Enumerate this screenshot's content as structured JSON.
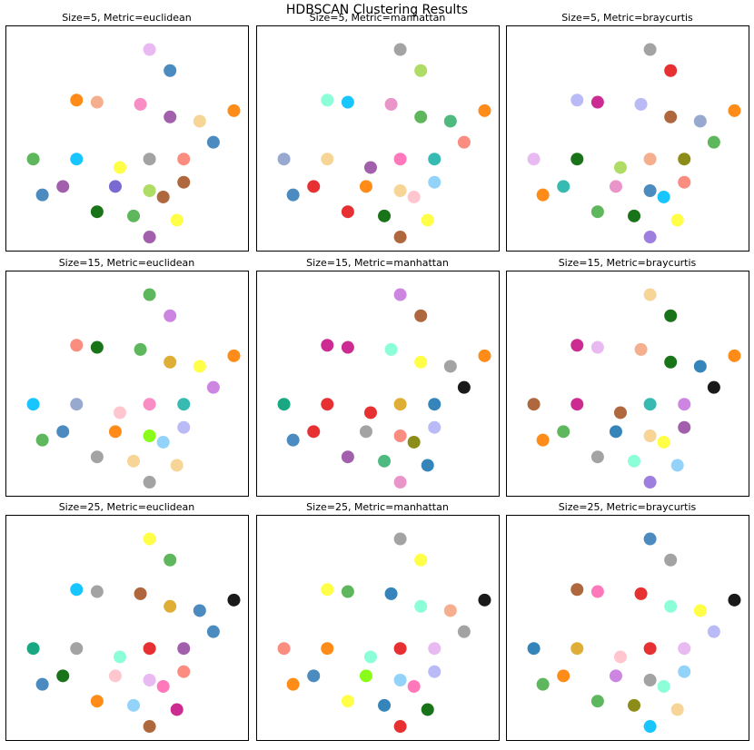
{
  "title": "HDBSCAN Clustering Results",
  "chart_data": [
    {
      "type": "scatter",
      "title": "Size=5, Metric=euclidean",
      "xlim": [
        0,
        100
      ],
      "ylim": [
        0,
        100
      ],
      "x": [
        60,
        69,
        28,
        37,
        56,
        69,
        82,
        9,
        28,
        47,
        60,
        75,
        88,
        22,
        45,
        60,
        75,
        13,
        37,
        53,
        66,
        72,
        60,
        97
      ],
      "y": [
        92,
        82,
        68,
        67,
        66,
        60,
        58,
        40,
        40,
        36,
        40,
        40,
        48,
        27,
        27,
        25,
        29,
        23,
        15,
        13,
        22,
        11,
        3,
        63
      ],
      "colors": [
        "#e6b3f0",
        "#377eb8",
        "#ff7f00",
        "#f4a582",
        "#f781bf",
        "#984ea3",
        "#f5d08b",
        "#4daf4a",
        "#00bfff",
        "#ffff33",
        "#999999",
        "#fa8072",
        "#377eb8",
        "#984ea3",
        "#6a5acd",
        "#a6d854",
        "#a65628",
        "#377eb8",
        "#006400",
        "#4daf4a",
        "#a65628",
        "#ffff33",
        "#984ea3",
        "#ff7f00"
      ]
    },
    {
      "type": "scatter",
      "title": "Size=5, Metric=manhattan",
      "xlim": [
        0,
        100
      ],
      "ylim": [
        0,
        100
      ],
      "x": [
        60,
        69,
        28,
        37,
        56,
        69,
        82,
        9,
        28,
        47,
        60,
        75,
        88,
        22,
        45,
        60,
        75,
        13,
        37,
        53,
        66,
        72,
        60,
        97
      ],
      "y": [
        92,
        82,
        68,
        67,
        66,
        60,
        58,
        40,
        40,
        36,
        40,
        40,
        48,
        27,
        27,
        25,
        29,
        23,
        15,
        13,
        22,
        11,
        3,
        63
      ],
      "colors": [
        "#999999",
        "#a6d854",
        "#7fffd4",
        "#00bfff",
        "#e78ac3",
        "#4daf4a",
        "#3cb371",
        "#8da0cb",
        "#f5d08b",
        "#984ea3",
        "#ff69b4",
        "#20b2aa",
        "#fa8072",
        "#e41a1c",
        "#ff7f00",
        "#f5d08b",
        "#87cefa",
        "#377eb8",
        "#e41a1c",
        "#006400",
        "#ffc0cb",
        "#ffff33",
        "#a65628",
        "#ff7f00"
      ]
    },
    {
      "type": "scatter",
      "title": "Size=5, Metric=braycurtis",
      "xlim": [
        0,
        100
      ],
      "ylim": [
        0,
        100
      ],
      "x": [
        60,
        69,
        28,
        37,
        56,
        69,
        82,
        9,
        28,
        47,
        60,
        75,
        88,
        22,
        45,
        60,
        75,
        13,
        37,
        53,
        66,
        72,
        60,
        97
      ],
      "y": [
        92,
        82,
        68,
        67,
        66,
        60,
        58,
        40,
        40,
        36,
        40,
        40,
        48,
        27,
        27,
        25,
        29,
        23,
        15,
        13,
        22,
        11,
        3,
        63
      ],
      "colors": [
        "#999999",
        "#e41a1c",
        "#b3b3f5",
        "#c71585",
        "#b3b3f5",
        "#a65628",
        "#8da0cb",
        "#e6b3f0",
        "#006400",
        "#a6d854",
        "#f4a582",
        "#808000",
        "#4daf4a",
        "#20b2aa",
        "#e78ac3",
        "#377eb8",
        "#fa8072",
        "#ff7f00",
        "#4daf4a",
        "#006400",
        "#00bfff",
        "#ffff33",
        "#9370db",
        "#ff7f00"
      ]
    },
    {
      "type": "scatter",
      "title": "Size=15, Metric=euclidean",
      "xlim": [
        0,
        100
      ],
      "ylim": [
        0,
        100
      ],
      "x": [
        60,
        69,
        28,
        37,
        56,
        69,
        82,
        9,
        28,
        47,
        60,
        75,
        88,
        22,
        45,
        60,
        75,
        13,
        37,
        53,
        66,
        72,
        60,
        97
      ],
      "y": [
        92,
        82,
        68,
        67,
        66,
        60,
        58,
        40,
        40,
        36,
        40,
        40,
        48,
        27,
        27,
        25,
        29,
        23,
        15,
        13,
        22,
        11,
        3,
        63
      ],
      "colors": [
        "#4daf4a",
        "#c678dd",
        "#fa8072",
        "#006400",
        "#4daf4a",
        "#daa520",
        "#ffff33",
        "#00bfff",
        "#8da0cb",
        "#ffc0cb",
        "#f781bf",
        "#20b2aa",
        "#c678dd",
        "#377eb8",
        "#ff7f00",
        "#7cfc00",
        "#b3b3f5",
        "#4daf4a",
        "#999999",
        "#f5d08b",
        "#87cefa",
        "#f5d08b",
        "#999999",
        "#ff7f00"
      ]
    },
    {
      "type": "scatter",
      "title": "Size=15, Metric=manhattan",
      "xlim": [
        0,
        100
      ],
      "ylim": [
        0,
        100
      ],
      "x": [
        60,
        69,
        28,
        37,
        56,
        69,
        82,
        9,
        28,
        47,
        60,
        75,
        88,
        22,
        45,
        60,
        75,
        13,
        37,
        53,
        66,
        72,
        60,
        97
      ],
      "y": [
        92,
        82,
        68,
        67,
        66,
        60,
        58,
        40,
        40,
        36,
        40,
        40,
        48,
        27,
        27,
        25,
        29,
        23,
        15,
        13,
        22,
        11,
        3,
        63
      ],
      "colors": [
        "#c678dd",
        "#a65628",
        "#c71585",
        "#c71585",
        "#7fffd4",
        "#ffff33",
        "#999999",
        "#009e73",
        "#e41a1c",
        "#e41a1c",
        "#daa520",
        "#1f78b4",
        "#000000",
        "#e41a1c",
        "#999999",
        "#fa8072",
        "#b3b3f5",
        "#377eb8",
        "#984ea3",
        "#3cb371",
        "#808000",
        "#1f78b4",
        "#e78ac3",
        "#ff7f00"
      ]
    },
    {
      "type": "scatter",
      "title": "Size=15, Metric=braycurtis",
      "xlim": [
        0,
        100
      ],
      "ylim": [
        0,
        100
      ],
      "x": [
        60,
        69,
        28,
        37,
        56,
        69,
        82,
        9,
        28,
        47,
        60,
        75,
        88,
        22,
        45,
        60,
        75,
        13,
        37,
        53,
        66,
        72,
        60,
        97
      ],
      "y": [
        92,
        82,
        68,
        67,
        66,
        60,
        58,
        40,
        40,
        36,
        40,
        40,
        48,
        27,
        27,
        25,
        29,
        23,
        15,
        13,
        22,
        11,
        3,
        63
      ],
      "colors": [
        "#f5d08b",
        "#006400",
        "#c71585",
        "#e6b3f0",
        "#f4a582",
        "#006400",
        "#1f78b4",
        "#a65628",
        "#c71585",
        "#a65628",
        "#20b2aa",
        "#c678dd",
        "#000000",
        "#4daf4a",
        "#1f78b4",
        "#f5d08b",
        "#984ea3",
        "#ff7f00",
        "#999999",
        "#7fffd4",
        "#ffff33",
        "#87cefa",
        "#9370db",
        "#ff7f00"
      ]
    },
    {
      "type": "scatter",
      "title": "Size=25, Metric=euclidean",
      "xlim": [
        0,
        100
      ],
      "ylim": [
        0,
        100
      ],
      "x": [
        60,
        69,
        28,
        37,
        56,
        69,
        82,
        9,
        28,
        47,
        60,
        75,
        88,
        22,
        45,
        60,
        75,
        13,
        37,
        53,
        66,
        72,
        60,
        97
      ],
      "y": [
        92,
        82,
        68,
        67,
        66,
        60,
        58,
        40,
        40,
        36,
        40,
        40,
        48,
        27,
        27,
        25,
        29,
        23,
        15,
        13,
        22,
        11,
        3,
        63
      ],
      "colors": [
        "#ffff33",
        "#4daf4a",
        "#00bfff",
        "#999999",
        "#a65628",
        "#daa520",
        "#377eb8",
        "#009e73",
        "#999999",
        "#7fffd4",
        "#e41a1c",
        "#984ea3",
        "#377eb8",
        "#006400",
        "#ffc0cb",
        "#e6b3f0",
        "#fa8072",
        "#377eb8",
        "#ff7f00",
        "#87cefa",
        "#ff69b4",
        "#c71585",
        "#a65628",
        "#000000"
      ]
    },
    {
      "type": "scatter",
      "title": "Size=25, Metric=manhattan",
      "xlim": [
        0,
        100
      ],
      "ylim": [
        0,
        100
      ],
      "x": [
        60,
        69,
        28,
        37,
        56,
        69,
        82,
        9,
        28,
        47,
        60,
        75,
        88,
        22,
        45,
        60,
        75,
        13,
        37,
        53,
        66,
        72,
        60,
        97
      ],
      "y": [
        92,
        82,
        68,
        67,
        66,
        60,
        58,
        40,
        40,
        36,
        40,
        40,
        48,
        27,
        27,
        25,
        29,
        23,
        15,
        13,
        22,
        11,
        3,
        63
      ],
      "colors": [
        "#999999",
        "#ffff33",
        "#ffff33",
        "#4daf4a",
        "#1f78b4",
        "#7fffd4",
        "#f4a582",
        "#fa8072",
        "#ff7f00",
        "#7fffd4",
        "#e41a1c",
        "#e6b3f0",
        "#999999",
        "#377eb8",
        "#7cfc00",
        "#87cefa",
        "#b3b3f5",
        "#ff7f00",
        "#ffff33",
        "#1f78b4",
        "#ff69b4",
        "#006400",
        "#e41a1c",
        "#000000"
      ]
    },
    {
      "type": "scatter",
      "title": "Size=25, Metric=braycurtis",
      "xlim": [
        0,
        100
      ],
      "ylim": [
        0,
        100
      ],
      "x": [
        60,
        69,
        28,
        37,
        56,
        69,
        82,
        9,
        28,
        47,
        60,
        75,
        88,
        22,
        45,
        60,
        75,
        13,
        37,
        53,
        66,
        72,
        60,
        97
      ],
      "y": [
        92,
        82,
        68,
        67,
        66,
        60,
        58,
        40,
        40,
        36,
        40,
        40,
        48,
        27,
        27,
        25,
        29,
        23,
        15,
        13,
        22,
        11,
        3,
        63
      ],
      "colors": [
        "#377eb8",
        "#999999",
        "#a65628",
        "#ff69b4",
        "#e41a1c",
        "#7fffd4",
        "#ffff33",
        "#1f78b4",
        "#daa520",
        "#ffc0cb",
        "#e41a1c",
        "#e6b3f0",
        "#b3b3f5",
        "#ff7f00",
        "#c678dd",
        "#999999",
        "#87cefa",
        "#4daf4a",
        "#4daf4a",
        "#808000",
        "#7fffd4",
        "#f5d08b",
        "#00bfff",
        "#000000"
      ]
    }
  ]
}
